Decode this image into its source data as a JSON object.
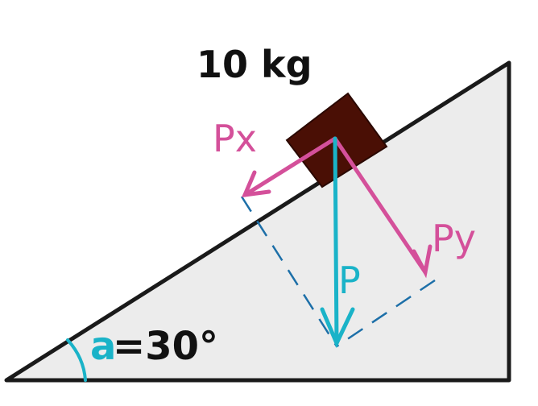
{
  "diagram": {
    "mass_label": "10 kg",
    "forces": {
      "px": {
        "label": "Px"
      },
      "py": {
        "label": "Py"
      },
      "p": {
        "label": "P"
      }
    },
    "angle": {
      "symbol": "a",
      "value": "=30°"
    }
  },
  "colors": {
    "incline_fill": "#ececec",
    "outline": "#1a1a1a",
    "block": "#4a0f05",
    "gravity": "#1ab3c8",
    "components": "#d4509a",
    "dashes": "#1d6fa8",
    "text": "#111111"
  }
}
